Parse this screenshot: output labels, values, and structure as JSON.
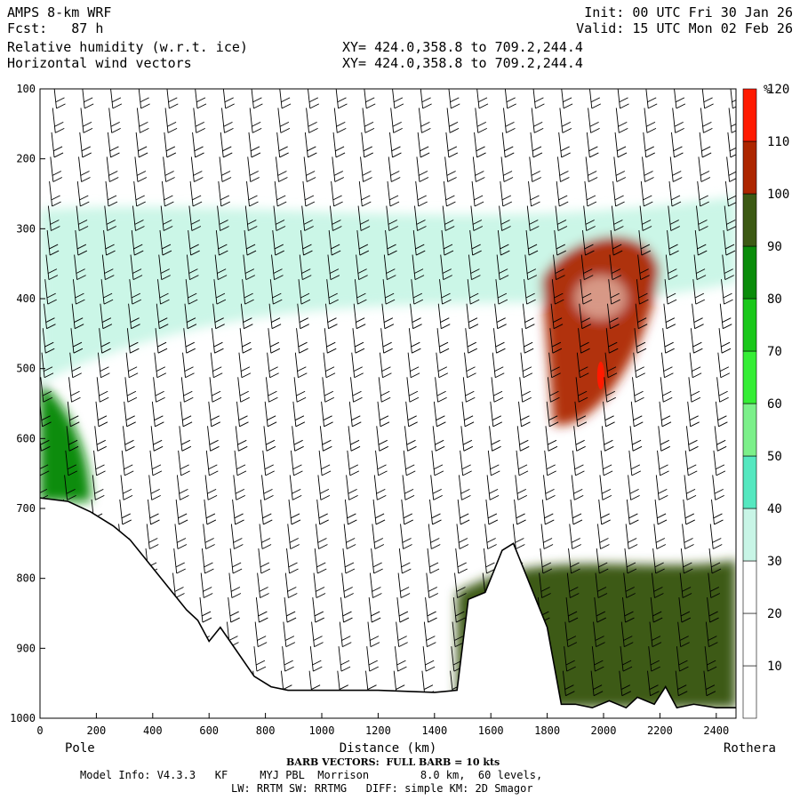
{
  "header": {
    "model": "AMPS 8-km WRF",
    "fcst": "Fcst:   87 h",
    "field1": "Relative humidity (w.r.t. ice)",
    "field2": "Horizontal wind vectors",
    "init": "Init: 00 UTC Fri 30 Jan 26",
    "valid": "Valid: 15 UTC Mon 02 Feb 26",
    "xy1": "XY= 424.0,358.8 to 709.2,244.4",
    "xy2": "XY= 424.0,358.8 to 709.2,244.4"
  },
  "footer": {
    "barb_note": "BARB VECTORS:  FULL BARB = 10 kts",
    "model_info": "Model Info: V4.3.3   KF     MYJ PBL  Morrison        8.0 km,  60 levels,",
    "physics": "LW: RRTM SW: RRTMG   DIFF: simple KM: 2D Smagor"
  },
  "colors": {
    "bands": [
      "#ffffff",
      "#ffffff",
      "#ffffff",
      "#c8f5e6",
      "#55e8c0",
      "#7cf08a",
      "#35ee35",
      "#1ac81a",
      "#0a8c0a",
      "#3c5a14",
      "#ad2600",
      "#ff1a00"
    ],
    "terrain_line": "#000000",
    "barb": "#000000"
  },
  "chart_data": {
    "type": "heatmap",
    "title": "Relative humidity (w.r.t. ice)",
    "xlabel": "Distance (km)",
    "ylabel": "",
    "xlim": [
      0,
      2470
    ],
    "ylim": [
      1000,
      100
    ],
    "x_ticks": [
      "0",
      "200",
      "400",
      "600",
      "800",
      "1000",
      "1200",
      "1400",
      "1600",
      "1800",
      "2000",
      "2200",
      "2400"
    ],
    "y_ticks": [
      "100",
      "200",
      "300",
      "400",
      "500",
      "600",
      "700",
      "800",
      "900",
      "1000"
    ],
    "endpoint_labels": {
      "left": "Pole",
      "right": "Rothera"
    },
    "colorbar": {
      "unit": "%",
      "levels": [
        "10",
        "20",
        "30",
        "40",
        "50",
        "60",
        "70",
        "80",
        "90",
        "100",
        "110",
        "120"
      ]
    },
    "terrain_surface": {
      "x": [
        0,
        100,
        180,
        260,
        320,
        380,
        440,
        480,
        520,
        560,
        600,
        640,
        700,
        760,
        820,
        880,
        1000,
        1200,
        1400,
        1480,
        1520,
        1580,
        1640,
        1680,
        1720,
        1760,
        1800,
        1850,
        1900,
        1960,
        2020,
        2080,
        2120,
        2180,
        2220,
        2260,
        2320,
        2400,
        2470
      ],
      "p": [
        685,
        690,
        705,
        725,
        745,
        775,
        805,
        825,
        845,
        860,
        890,
        870,
        905,
        940,
        955,
        960,
        960,
        960,
        963,
        960,
        830,
        820,
        760,
        750,
        790,
        830,
        870,
        980,
        980,
        985,
        975,
        985,
        970,
        980,
        955,
        985,
        980,
        985,
        985
      ]
    },
    "rh_features": [
      {
        "shape": "upper-band",
        "x": [
          0,
          2470
        ],
        "p": [
          260,
          520
        ],
        "rh": 35
      },
      {
        "shape": "moist-core",
        "x": [
          1780,
          2200
        ],
        "p": [
          320,
          580
        ],
        "rh": 100
      },
      {
        "shape": "moist-pocket",
        "x": [
          1980,
          2000
        ],
        "p": [
          490,
          530
        ],
        "rh": 115
      },
      {
        "shape": "low-left-moist",
        "x": [
          0,
          180
        ],
        "p": [
          520,
          690
        ],
        "rh": 80
      },
      {
        "shape": "boundary-layer",
        "x": [
          1480,
          2470
        ],
        "p": [
          750,
          985
        ],
        "rh": 90
      }
    ],
    "wind_barb_columns_x": [
      50,
      150,
      250,
      350,
      450,
      550,
      650,
      750,
      850,
      950,
      1050,
      1150,
      1250,
      1350,
      1450,
      1550,
      1650,
      1750,
      1850,
      1950,
      2050,
      2150,
      2250,
      2350,
      2450
    ]
  }
}
